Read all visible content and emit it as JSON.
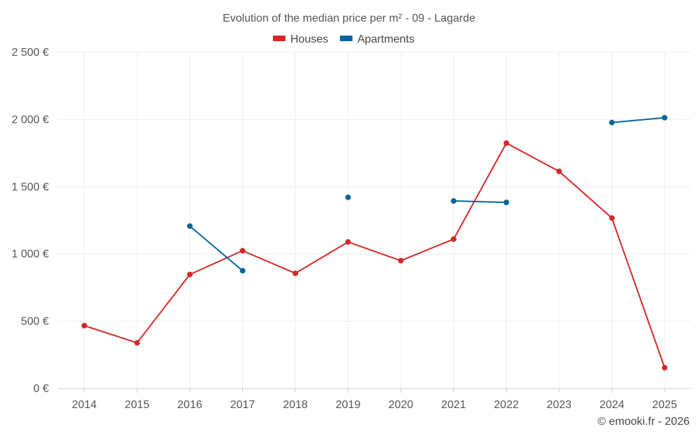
{
  "chart_data": {
    "type": "line",
    "title": "Evolution of the median price per m² - 09 - Lagarde",
    "categories": [
      "2014",
      "2015",
      "2016",
      "2017",
      "2018",
      "2019",
      "2020",
      "2021",
      "2022",
      "2023",
      "2024",
      "2025"
    ],
    "series": [
      {
        "name": "Houses",
        "color": "#d62728",
        "values": [
          468,
          340,
          848,
          1025,
          857,
          1090,
          951,
          1111,
          1825,
          1615,
          1268,
          155
        ]
      },
      {
        "name": "Apartments",
        "color": "#07649e",
        "values": [
          null,
          null,
          1208,
          876,
          null,
          1422,
          null,
          1395,
          1384,
          null,
          1978,
          2014
        ]
      }
    ],
    "ylim": [
      0,
      2500
    ],
    "yticks": [
      {
        "value": 0,
        "label": "0 €"
      },
      {
        "value": 500,
        "label": "500 €"
      },
      {
        "value": 1000,
        "label": "1 000 €"
      },
      {
        "value": 1500,
        "label": "1 500 €"
      },
      {
        "value": 2000,
        "label": "2 000 €"
      },
      {
        "value": 2500,
        "label": "2 500 €"
      }
    ],
    "xlabel": "",
    "ylabel": "",
    "grid": true,
    "legend_position": "top-center",
    "credit": "© emooki.fr - 2026"
  }
}
